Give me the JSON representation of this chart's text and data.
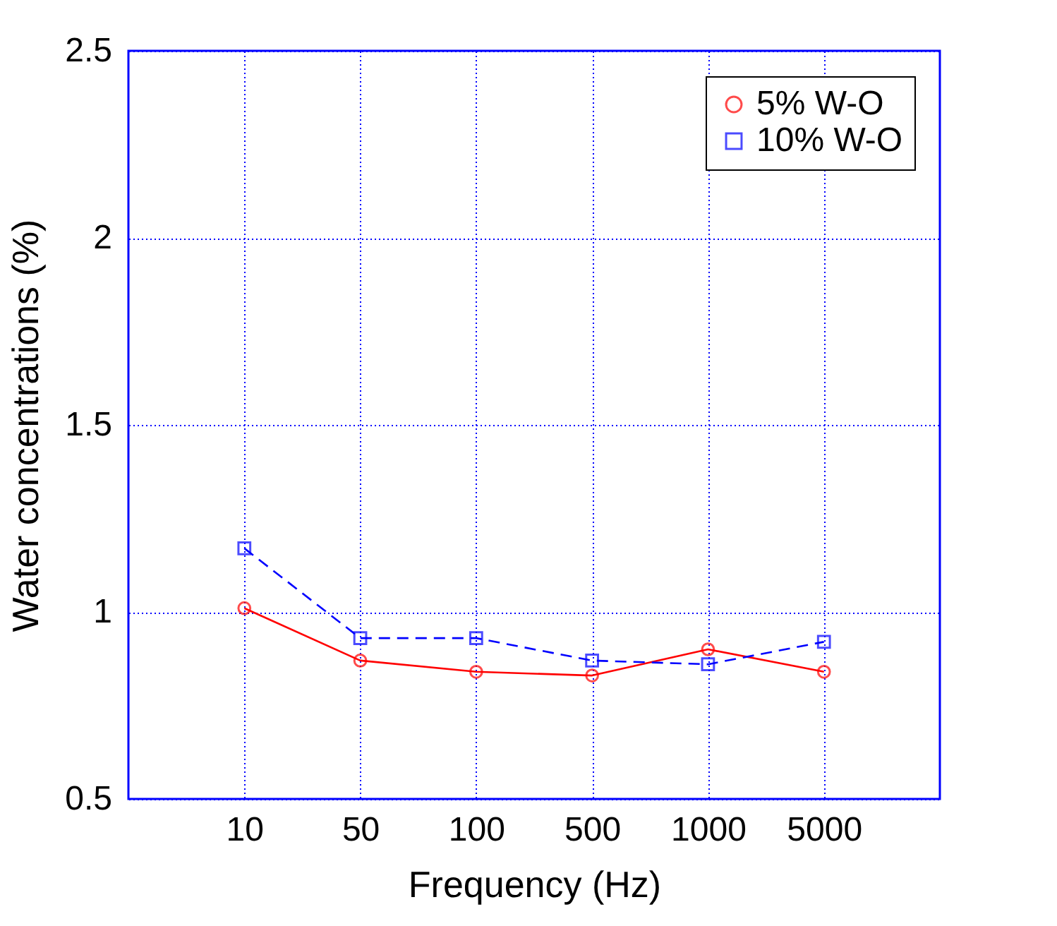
{
  "chart_data": {
    "type": "line",
    "xlabel": "Frequency (Hz)",
    "ylabel": "Water concentrations (%)",
    "categories": [
      "10",
      "50",
      "100",
      "500",
      "1000",
      "5000"
    ],
    "series": [
      {
        "name": "5% W-O",
        "color": "#ff0000",
        "values": [
          1.01,
          0.87,
          0.84,
          0.83,
          0.9,
          0.84
        ],
        "marker": "circle",
        "line_style": "solid"
      },
      {
        "name": "10% W-O",
        "color": "#0000ff",
        "values": [
          1.17,
          0.93,
          0.93,
          0.87,
          0.86,
          0.92
        ],
        "marker": "square",
        "line_style": "dashed"
      }
    ],
    "ylim": [
      0.5,
      2.5
    ],
    "yticks": [
      0.5,
      1,
      1.5,
      2,
      2.5
    ],
    "grid": true,
    "legend": "top right"
  }
}
